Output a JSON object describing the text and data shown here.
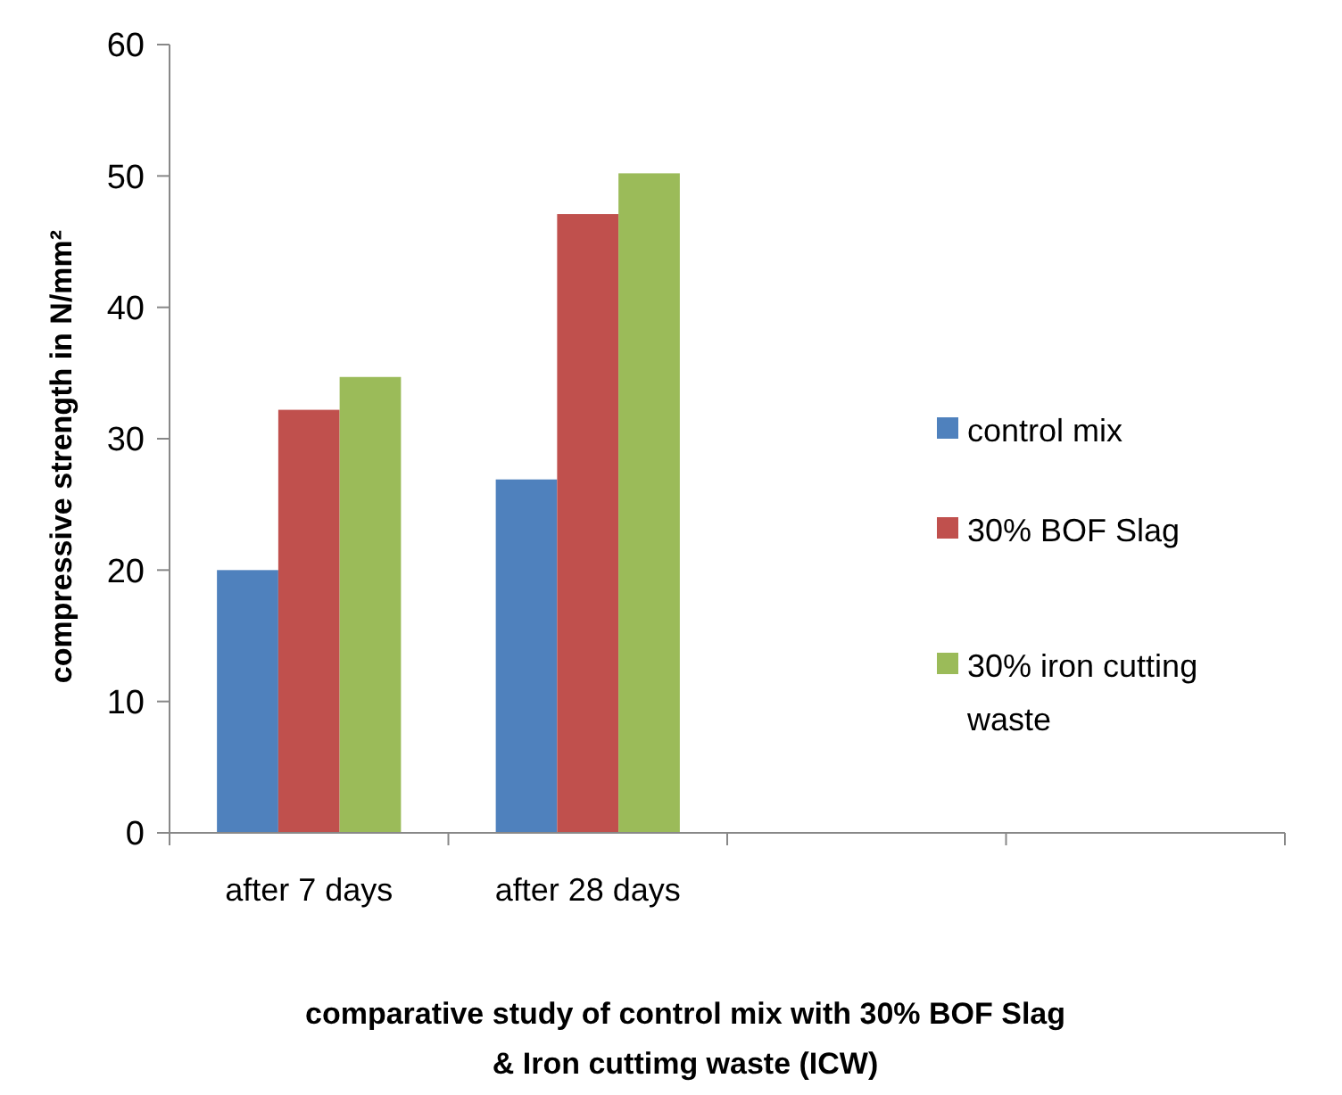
{
  "chart_data": {
    "type": "bar",
    "xlabel": "comparative study of control mix with 30% BOF Slag\n& Iron cuttimg waste (ICW)",
    "ylabel": "compressive strength in N/mm²",
    "categories": [
      "after 7 days",
      "after 28 days",
      null,
      null
    ],
    "series": [
      {
        "name": "control mix",
        "color": "#4f81bd",
        "values": [
          20,
          26.9,
          null,
          null
        ]
      },
      {
        "name": "30% BOF Slag",
        "color": "#c0504d",
        "values": [
          32.2,
          47.1,
          null,
          null
        ]
      },
      {
        "name": "30% iron cutting\nwaste",
        "color": "#9bbb59",
        "values": [
          34.7,
          50.2,
          null,
          null
        ]
      }
    ],
    "ylim": [
      0,
      60
    ],
    "yticks": [
      0,
      10,
      20,
      30,
      40,
      50,
      60
    ],
    "grid": false,
    "legend": "right"
  }
}
